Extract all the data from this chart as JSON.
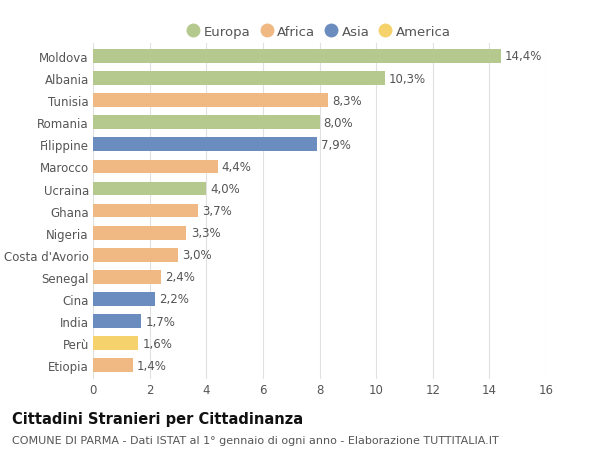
{
  "countries": [
    "Moldova",
    "Albania",
    "Tunisia",
    "Romania",
    "Filippine",
    "Marocco",
    "Ucraina",
    "Ghana",
    "Nigeria",
    "Costa d'Avorio",
    "Senegal",
    "Cina",
    "India",
    "Perù",
    "Etiopia"
  ],
  "values": [
    14.4,
    10.3,
    8.3,
    8.0,
    7.9,
    4.4,
    4.0,
    3.7,
    3.3,
    3.0,
    2.4,
    2.2,
    1.7,
    1.6,
    1.4
  ],
  "labels": [
    "14,4%",
    "10,3%",
    "8,3%",
    "8,0%",
    "7,9%",
    "4,4%",
    "4,0%",
    "3,7%",
    "3,3%",
    "3,0%",
    "2,4%",
    "2,2%",
    "1,7%",
    "1,6%",
    "1,4%"
  ],
  "continents": [
    "Europa",
    "Europa",
    "Africa",
    "Europa",
    "Asia",
    "Africa",
    "Europa",
    "Africa",
    "Africa",
    "Africa",
    "Africa",
    "Asia",
    "Asia",
    "America",
    "Africa"
  ],
  "colors": {
    "Europa": "#b5c98e",
    "Africa": "#f0b882",
    "Asia": "#6b8cbe",
    "America": "#f5d26b"
  },
  "legend_order": [
    "Europa",
    "Africa",
    "Asia",
    "America"
  ],
  "xlim": [
    0,
    16
  ],
  "xticks": [
    0,
    2,
    4,
    6,
    8,
    10,
    12,
    14,
    16
  ],
  "title": "Cittadini Stranieri per Cittadinanza",
  "subtitle": "COMUNE DI PARMA - Dati ISTAT al 1° gennaio di ogni anno - Elaborazione TUTTITALIA.IT",
  "background_color": "#ffffff",
  "grid_color": "#e0e0e0",
  "bar_height": 0.62,
  "label_fontsize": 8.5,
  "title_fontsize": 10.5,
  "subtitle_fontsize": 8,
  "tick_fontsize": 8.5,
  "legend_fontsize": 9.5
}
